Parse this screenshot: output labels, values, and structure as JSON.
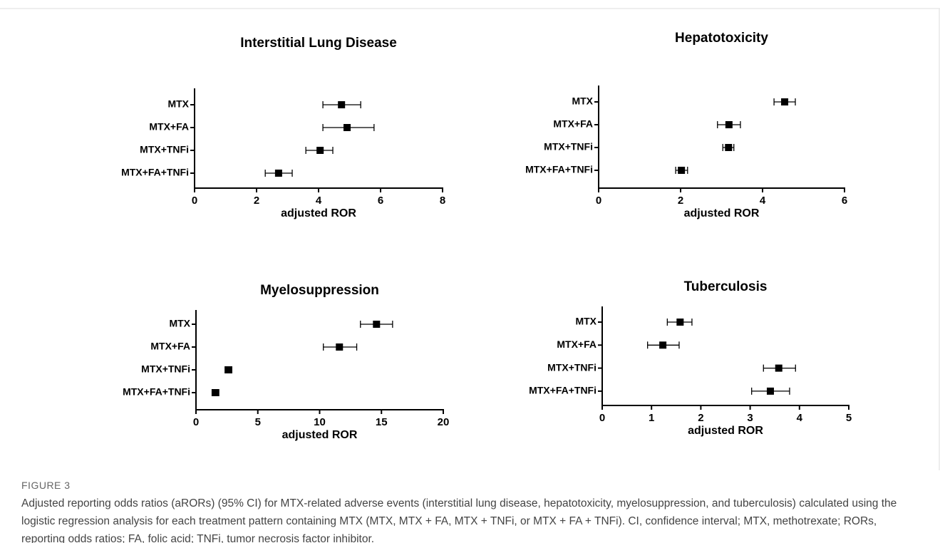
{
  "chart_data": [
    {
      "type": "forest",
      "title": "Interstitial Lung Disease",
      "x_label": "adjusted ROR",
      "categories": [
        "MTX",
        "MTX+FA",
        "MTX+TNFi",
        "MTX+FA+TNFi"
      ],
      "values": [
        4.74,
        4.92,
        4.05,
        2.71
      ],
      "ci_low": [
        4.14,
        4.14,
        3.59,
        2.28
      ],
      "ci_high": [
        5.36,
        5.79,
        4.46,
        3.15
      ],
      "xlim": [
        0,
        8
      ],
      "xticks": [
        0,
        2,
        4,
        6,
        8
      ],
      "color": "#000000"
    },
    {
      "type": "forest",
      "title": "Hepatotoxicity",
      "x_label": "adjusted ROR",
      "categories": [
        "MTX",
        "MTX+FA",
        "MTX+TNFi",
        "MTX+FA+TNFi"
      ],
      "values": [
        4.54,
        3.18,
        3.17,
        2.02
      ],
      "ci_low": [
        4.28,
        2.9,
        3.03,
        1.88
      ],
      "ci_high": [
        4.8,
        3.46,
        3.3,
        2.17
      ],
      "xlim": [
        0,
        6
      ],
      "xticks": [
        0,
        2,
        4,
        6
      ],
      "color": "#000000"
    },
    {
      "type": "forest",
      "title": "Myelosuppression",
      "x_label": "adjusted ROR",
      "categories": [
        "MTX",
        "MTX+FA",
        "MTX+TNFi",
        "MTX+FA+TNFi"
      ],
      "values": [
        14.6,
        11.6,
        2.6,
        1.6
      ],
      "ci_low": [
        13.3,
        10.3,
        2.4,
        1.3
      ],
      "ci_high": [
        15.9,
        13.0,
        2.9,
        1.8
      ],
      "xlim": [
        0,
        20
      ],
      "xticks": [
        0,
        5,
        10,
        15,
        20
      ],
      "color": "#000000"
    },
    {
      "type": "forest",
      "title": "Tuberculosis",
      "x_label": "adjusted ROR",
      "categories": [
        "MTX",
        "MTX+FA",
        "MTX+TNFi",
        "MTX+FA+TNFi"
      ],
      "values": [
        1.58,
        1.23,
        3.58,
        3.41
      ],
      "ci_low": [
        1.32,
        0.92,
        3.27,
        3.03
      ],
      "ci_high": [
        1.82,
        1.56,
        3.92,
        3.8
      ],
      "xlim": [
        0,
        5
      ],
      "xticks": [
        0,
        1,
        2,
        3,
        4,
        5
      ],
      "color": "#000000"
    }
  ],
  "figure": {
    "label": "FIGURE 3",
    "caption": "Adjusted reporting odds ratios (aRORs) (95% CI) for MTX-related adverse events (interstitial lung disease, hepatotoxicity, myelosuppression, and tuberculosis) calculated using the logistic regression analysis for each treatment pattern containing MTX (MTX, MTX + FA, MTX + TNFi, or MTX + FA + TNFi). CI, confidence interval; MTX, methotrexate; RORs, reporting odds ratios; FA, folic acid; TNFi, tumor necrosis factor inhibitor."
  }
}
